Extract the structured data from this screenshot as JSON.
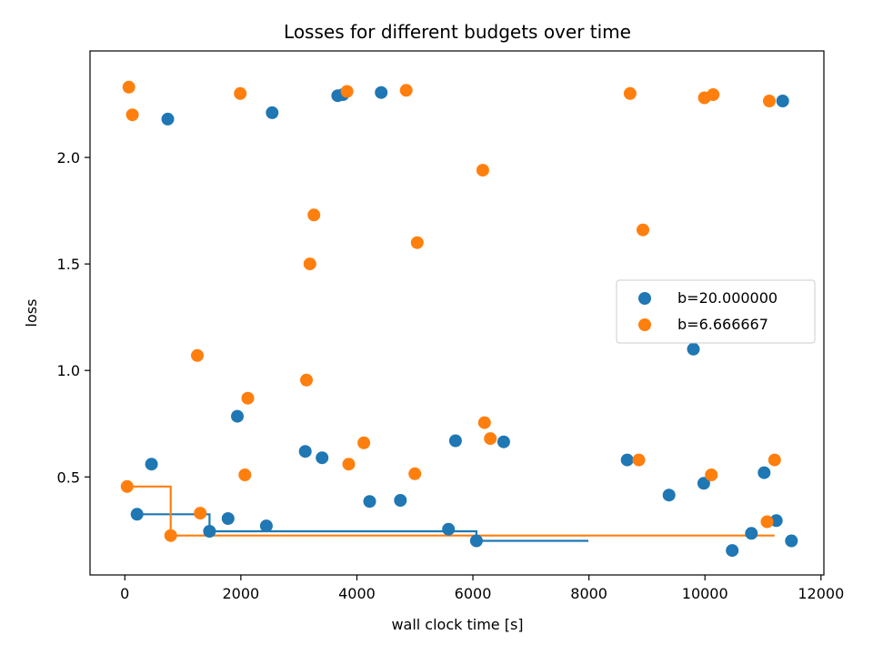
{
  "chart_data": {
    "type": "scatter",
    "title": "Losses for different budgets over time",
    "xlabel": "wall clock time [s]",
    "ylabel": "loss",
    "xlim": [
      -600,
      12050
    ],
    "ylim": [
      0.04,
      2.5
    ],
    "xticks": [
      0,
      2000,
      4000,
      6000,
      8000,
      10000,
      12000
    ],
    "xtick_labels": [
      "0",
      "2000",
      "4000",
      "6000",
      "8000",
      "10000",
      "12000"
    ],
    "yticks": [
      0.5,
      1.0,
      1.5,
      2.0
    ],
    "ytick_labels": [
      "0.5",
      "1.0",
      "1.5",
      "2.0"
    ],
    "grid": false,
    "legend_position": "center-right",
    "series": [
      {
        "name": "b=20.000000",
        "color": "#1f77b4",
        "points": [
          [
            210,
            0.325
          ],
          [
            460,
            0.56
          ],
          [
            740,
            2.18
          ],
          [
            1460,
            0.245
          ],
          [
            1780,
            0.305
          ],
          [
            1940,
            0.785
          ],
          [
            2440,
            0.27
          ],
          [
            2540,
            2.21
          ],
          [
            3110,
            0.62
          ],
          [
            3400,
            0.59
          ],
          [
            3670,
            2.29
          ],
          [
            3760,
            2.295
          ],
          [
            4220,
            0.385
          ],
          [
            4420,
            2.305
          ],
          [
            4750,
            0.39
          ],
          [
            5580,
            0.255
          ],
          [
            5700,
            0.67
          ],
          [
            6060,
            0.2
          ],
          [
            6530,
            0.665
          ],
          [
            8660,
            0.58
          ],
          [
            9380,
            0.415
          ],
          [
            9800,
            1.1
          ],
          [
            9980,
            0.47
          ],
          [
            10470,
            0.155
          ],
          [
            10800,
            0.235
          ],
          [
            11020,
            0.52
          ],
          [
            11230,
            0.295
          ],
          [
            11340,
            2.265
          ],
          [
            11490,
            0.2
          ]
        ],
        "incumbent_step": [
          [
            210,
            0.325
          ],
          [
            1460,
            0.325
          ],
          [
            1460,
            0.245
          ],
          [
            6060,
            0.245
          ],
          [
            6060,
            0.2
          ],
          [
            7990,
            0.2
          ]
        ]
      },
      {
        "name": "b=6.666667",
        "color": "#ff7f0e",
        "points": [
          [
            40,
            0.455
          ],
          [
            70,
            2.33
          ],
          [
            130,
            2.2
          ],
          [
            790,
            0.225
          ],
          [
            1250,
            1.07
          ],
          [
            1300,
            0.33
          ],
          [
            1990,
            2.3
          ],
          [
            2070,
            0.51
          ],
          [
            2120,
            0.87
          ],
          [
            3130,
            0.955
          ],
          [
            3190,
            1.5
          ],
          [
            3260,
            1.73
          ],
          [
            3830,
            2.31
          ],
          [
            3860,
            0.56
          ],
          [
            4120,
            0.66
          ],
          [
            4850,
            2.315
          ],
          [
            5000,
            0.515
          ],
          [
            5040,
            1.6
          ],
          [
            6170,
            1.94
          ],
          [
            6200,
            0.755
          ],
          [
            6300,
            0.68
          ],
          [
            8710,
            2.3
          ],
          [
            8860,
            0.58
          ],
          [
            8930,
            1.66
          ],
          [
            9990,
            2.28
          ],
          [
            10110,
            0.51
          ],
          [
            10140,
            2.295
          ],
          [
            11070,
            0.29
          ],
          [
            11110,
            2.265
          ],
          [
            11200,
            0.58
          ]
        ],
        "incumbent_step": [
          [
            40,
            0.455
          ],
          [
            790,
            0.455
          ],
          [
            790,
            0.225
          ],
          [
            11200,
            0.225
          ]
        ]
      }
    ]
  }
}
